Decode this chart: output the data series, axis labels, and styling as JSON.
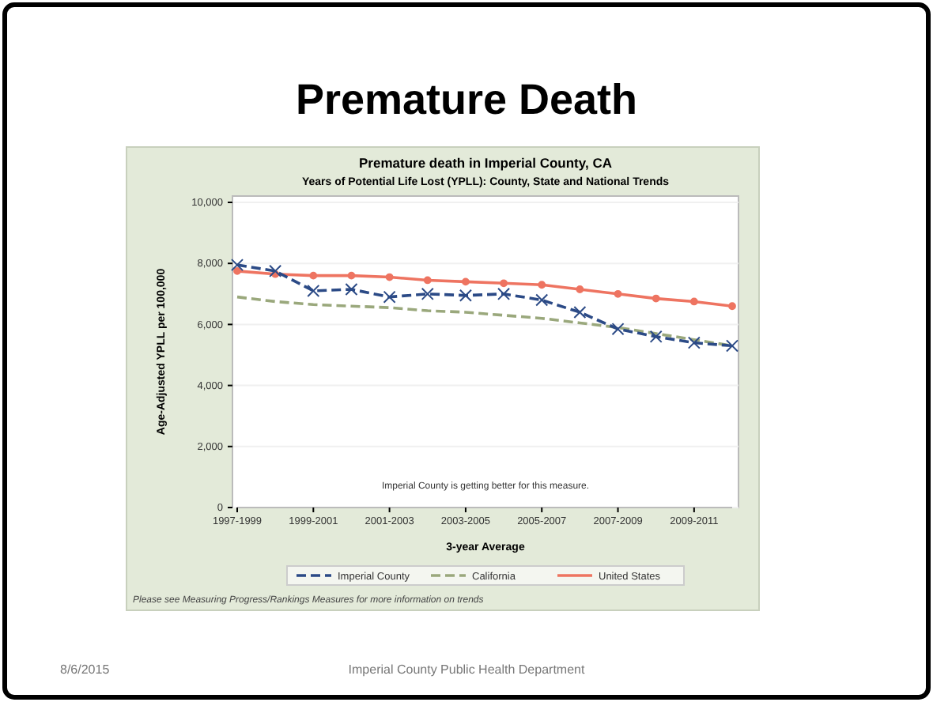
{
  "chart_data": {
    "type": "line",
    "title": "Premature death in Imperial County, CA",
    "subtitle": "Years of Potential Life Lost (YPLL): County, State and National Trends",
    "xlabel": "3-year Average",
    "ylabel": "Age-Adjusted YPLL per 100,000",
    "annotations": [
      "Premature Death",
      "Imperial County is getting better for this measure.",
      "Please see Measuring Progress/Rankings Measures for more information on trends",
      "8/6/2015",
      "Imperial County Public Health Department"
    ],
    "categories": [
      "1997-1999",
      null,
      "1999-2001",
      null,
      "2001-2003",
      null,
      "2003-2005",
      null,
      "2005-2007",
      null,
      "2007-2009",
      null,
      "2009-2011",
      null
    ],
    "series": [
      {
        "name": "Imperial County",
        "color": "#2b4a86",
        "line_style": "dashed",
        "marker": "cross",
        "values": [
          7950,
          7750,
          7100,
          7150,
          6900,
          7000,
          6950,
          7000,
          6800,
          6400,
          5850,
          5600,
          5400,
          5300
        ]
      },
      {
        "name": "California",
        "color": "#9aa87c",
        "line_style": "dashed",
        "marker": "none",
        "values": [
          6900,
          6750,
          6650,
          6600,
          6550,
          6450,
          6400,
          6300,
          6200,
          6050,
          5900,
          5700,
          5500,
          5300
        ]
      },
      {
        "name": "United States",
        "color": "#ee7461",
        "line_style": "solid",
        "marker": "circle",
        "values": [
          7750,
          7650,
          7600,
          7600,
          7550,
          7450,
          7400,
          7350,
          7300,
          7150,
          7000,
          6850,
          6750,
          6600
        ]
      }
    ],
    "ylim": [
      0,
      10000
    ],
    "yticks": [
      0,
      {
        "value": 2000,
        "label": "2,000"
      },
      {
        "value": 4000,
        "label": "4,000"
      },
      {
        "value": 6000,
        "label": "6,000"
      },
      {
        "value": 8000,
        "label": "8,000"
      },
      {
        "value": 10000,
        "label": "10,000"
      }
    ],
    "grid": "y",
    "legend": "bottom"
  }
}
